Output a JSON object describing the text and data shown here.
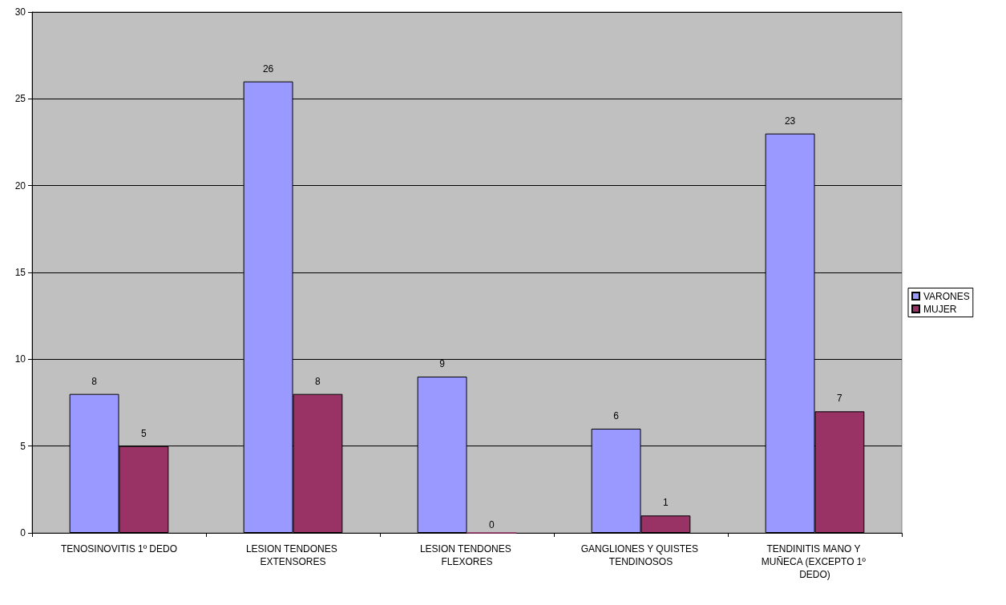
{
  "chart_data": {
    "type": "bar",
    "categories": [
      "TENOSINOVITIS 1º DEDO",
      "LESION TENDONES EXTENSORES",
      "LESION TENDONES FLEXORES",
      "GANGLIONES Y QUISTES TENDINOSOS",
      "TENDINITIS MANO Y MUÑECA (EXCEPTO 1º DEDO)"
    ],
    "series": [
      {
        "name": "VARONES",
        "color": "#9999ff",
        "values": [
          8,
          26,
          9,
          6,
          23
        ]
      },
      {
        "name": "MUJER",
        "color": "#993366",
        "values": [
          5,
          8,
          0,
          1,
          7
        ]
      }
    ],
    "ylim": [
      0,
      30
    ],
    "yticks": [
      0,
      5,
      10,
      15,
      20,
      25,
      30
    ],
    "grid": "y",
    "legend": "right",
    "data_labels": true
  }
}
